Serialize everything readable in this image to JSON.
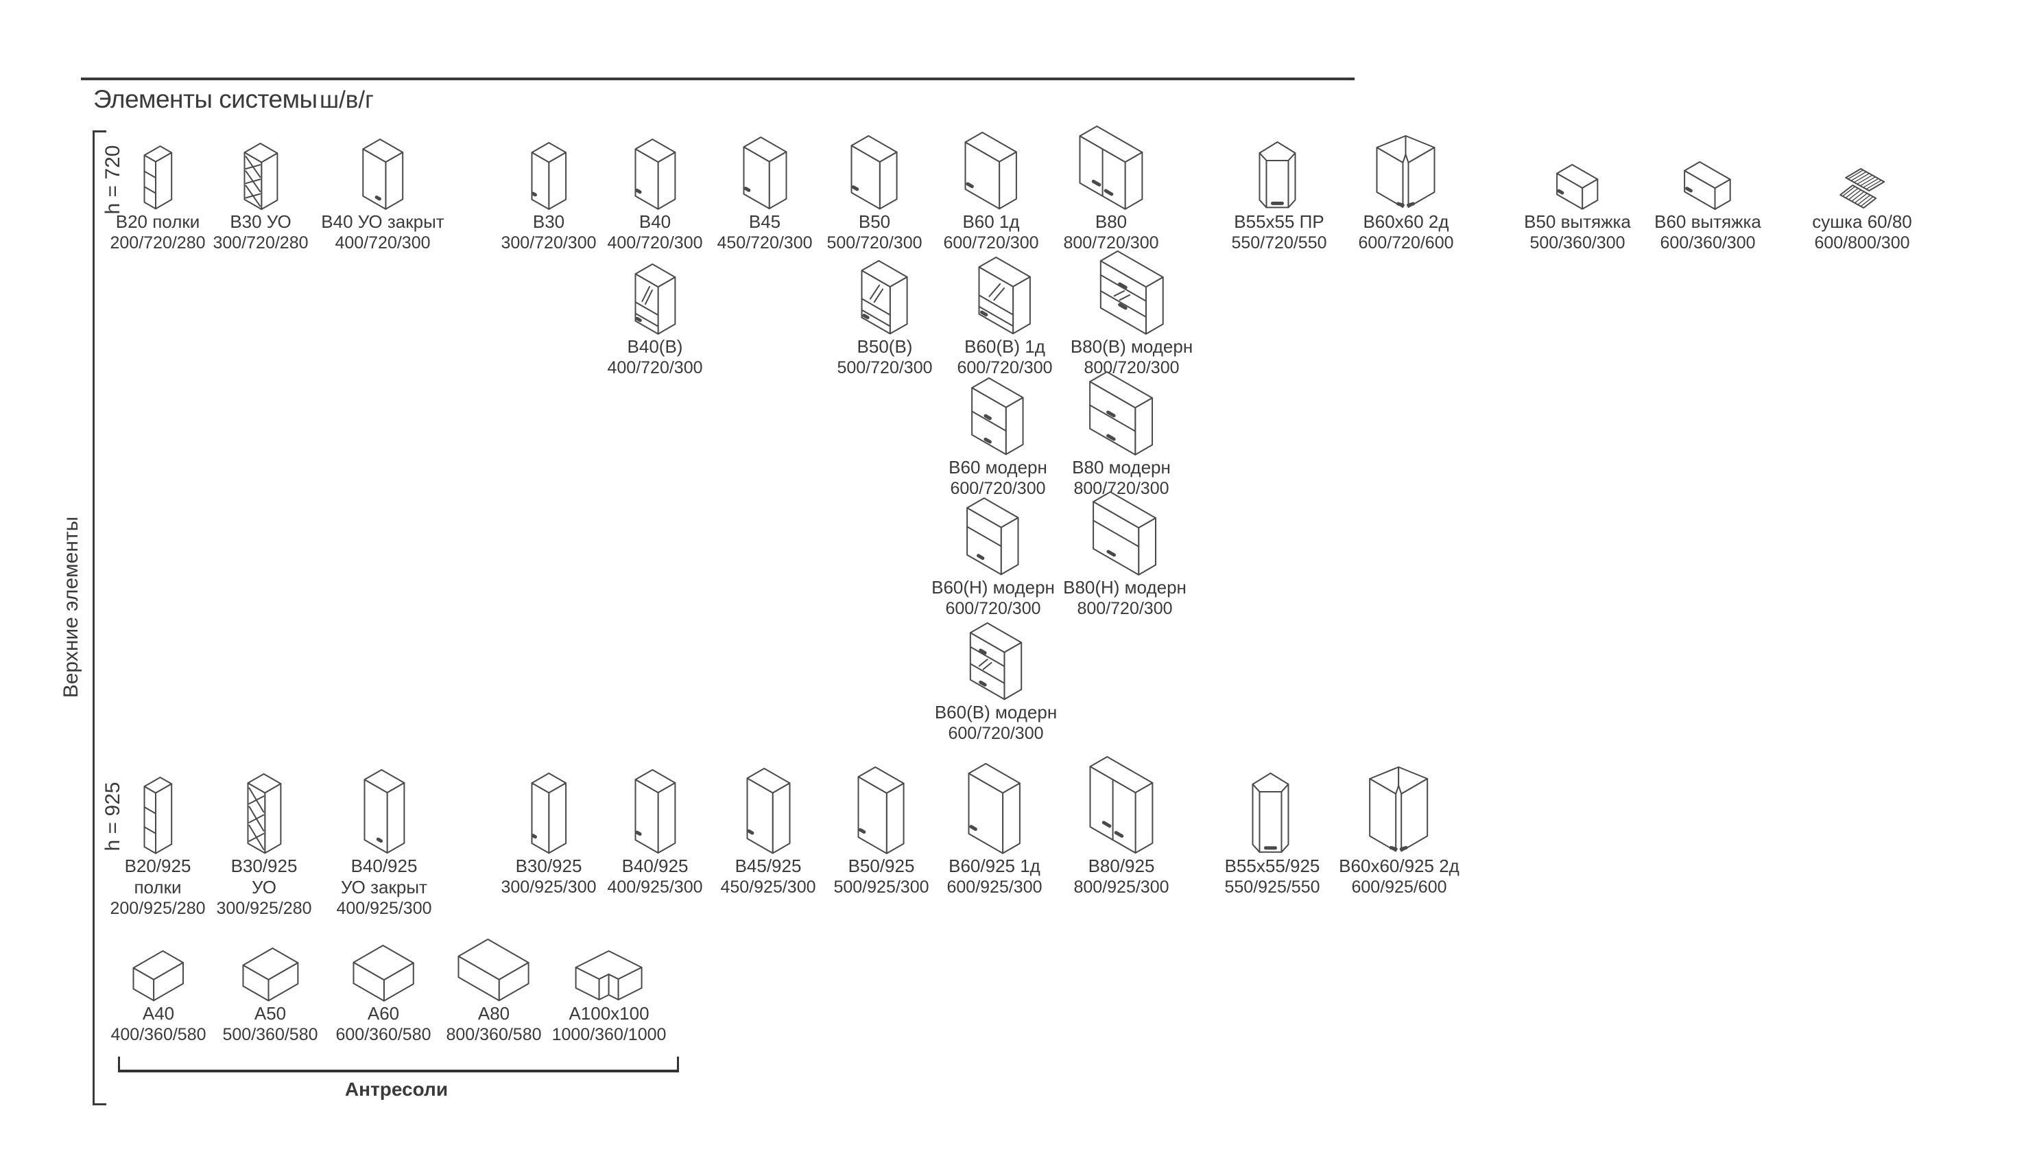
{
  "page": {
    "title": "Элементы системы",
    "dims_legend": "ш/в/г"
  },
  "sidebar": {
    "group_label": "Верхние элементы",
    "height_720_label": "h = 720",
    "height_925_label": "h = 925"
  },
  "groups": {
    "upper_h720": [
      {
        "name": "В20 полки",
        "dims": "200/720/280",
        "icon": "open-shelf"
      },
      {
        "name": "В30 УО",
        "dims": "300/720/280",
        "icon": "corner-open"
      },
      {
        "name": "В40 УО закрыт",
        "dims": "400/720/300",
        "icon": "corner-closed"
      },
      {
        "name": "В30",
        "dims": "300/720/300",
        "icon": "door"
      },
      {
        "name": "В40",
        "dims": "400/720/300",
        "icon": "door"
      },
      {
        "name": "В45",
        "dims": "450/720/300",
        "icon": "door"
      },
      {
        "name": "В50",
        "dims": "500/720/300",
        "icon": "door"
      },
      {
        "name": "В60 1д",
        "dims": "600/720/300",
        "icon": "door"
      },
      {
        "name": "В80",
        "dims": "800/720/300",
        "icon": "door2"
      },
      {
        "name": "В55х55 ПР",
        "dims": "550/720/550",
        "icon": "corner-pent"
      },
      {
        "name": "В60х60 2д",
        "dims": "600/720/600",
        "icon": "corner-l"
      },
      {
        "name": "В50 вытяжка",
        "dims": "500/360/300",
        "icon": "hood"
      },
      {
        "name": "В60 вытяжка",
        "dims": "600/360/300",
        "icon": "hood"
      },
      {
        "name": "сушка 60/80",
        "dims": "600/800/300",
        "icon": "dryer"
      }
    ],
    "upper_h720_glass": [
      {
        "name": "В40(В)",
        "dims": "400/720/300",
        "icon": "glass"
      },
      {
        "name": "В50(В)",
        "dims": "500/720/300",
        "icon": "glass"
      },
      {
        "name": "В60(В) 1д",
        "dims": "600/720/300",
        "icon": "glass"
      },
      {
        "name": "В80(В) модерн",
        "dims": "800/720/300",
        "icon": "glass-band"
      }
    ],
    "upper_h720_modern": [
      {
        "name": "В60 модерн",
        "dims": "600/720/300",
        "icon": "flap2"
      },
      {
        "name": "В80 модерн",
        "dims": "800/720/300",
        "icon": "flap2"
      }
    ],
    "upper_h720_modern_n": [
      {
        "name": "В60(Н) модерн",
        "dims": "600/720/300",
        "icon": "flap1"
      },
      {
        "name": "В80(Н) модерн",
        "dims": "800/720/300",
        "icon": "flap1"
      }
    ],
    "upper_h720_modern_v": [
      {
        "name": "В60(В) модерн",
        "dims": "600/720/300",
        "icon": "flap-glass"
      }
    ],
    "upper_h925": [
      {
        "name": "В20/925",
        "sub": "полки",
        "dims": "200/925/280",
        "icon": "open-shelf"
      },
      {
        "name": "В30/925",
        "sub": "УО",
        "dims": "300/925/280",
        "icon": "corner-open"
      },
      {
        "name": "В40/925",
        "sub": "УО закрыт",
        "dims": "400/925/300",
        "icon": "corner-closed"
      },
      {
        "name": "В30/925",
        "dims": "300/925/300",
        "icon": "door"
      },
      {
        "name": "В40/925",
        "dims": "400/925/300",
        "icon": "door"
      },
      {
        "name": "В45/925",
        "dims": "450/925/300",
        "icon": "door"
      },
      {
        "name": "В50/925",
        "dims": "500/925/300",
        "icon": "door"
      },
      {
        "name": "В60/925 1д",
        "dims": "600/925/300",
        "icon": "door"
      },
      {
        "name": "В80/925",
        "dims": "800/925/300",
        "icon": "door2"
      },
      {
        "name": "В55х55/925",
        "dims": "550/925/550",
        "icon": "corner-pent"
      },
      {
        "name": "В60х60/925 2д",
        "dims": "600/925/600",
        "icon": "corner-l"
      }
    ],
    "antresols": [
      {
        "name": "А40",
        "dims": "400/360/580",
        "icon": "box"
      },
      {
        "name": "А50",
        "dims": "500/360/580",
        "icon": "box"
      },
      {
        "name": "А60",
        "dims": "600/360/580",
        "icon": "box"
      },
      {
        "name": "А80",
        "dims": "800/360/580",
        "icon": "box"
      },
      {
        "name": "А100х100",
        "dims": "1000/360/1000",
        "icon": "corner-l-low"
      }
    ]
  },
  "footer": {
    "antresols_label": "Антресоли"
  },
  "colors": {
    "ink": "#3a3a3a",
    "line": "#4a4a4a"
  }
}
